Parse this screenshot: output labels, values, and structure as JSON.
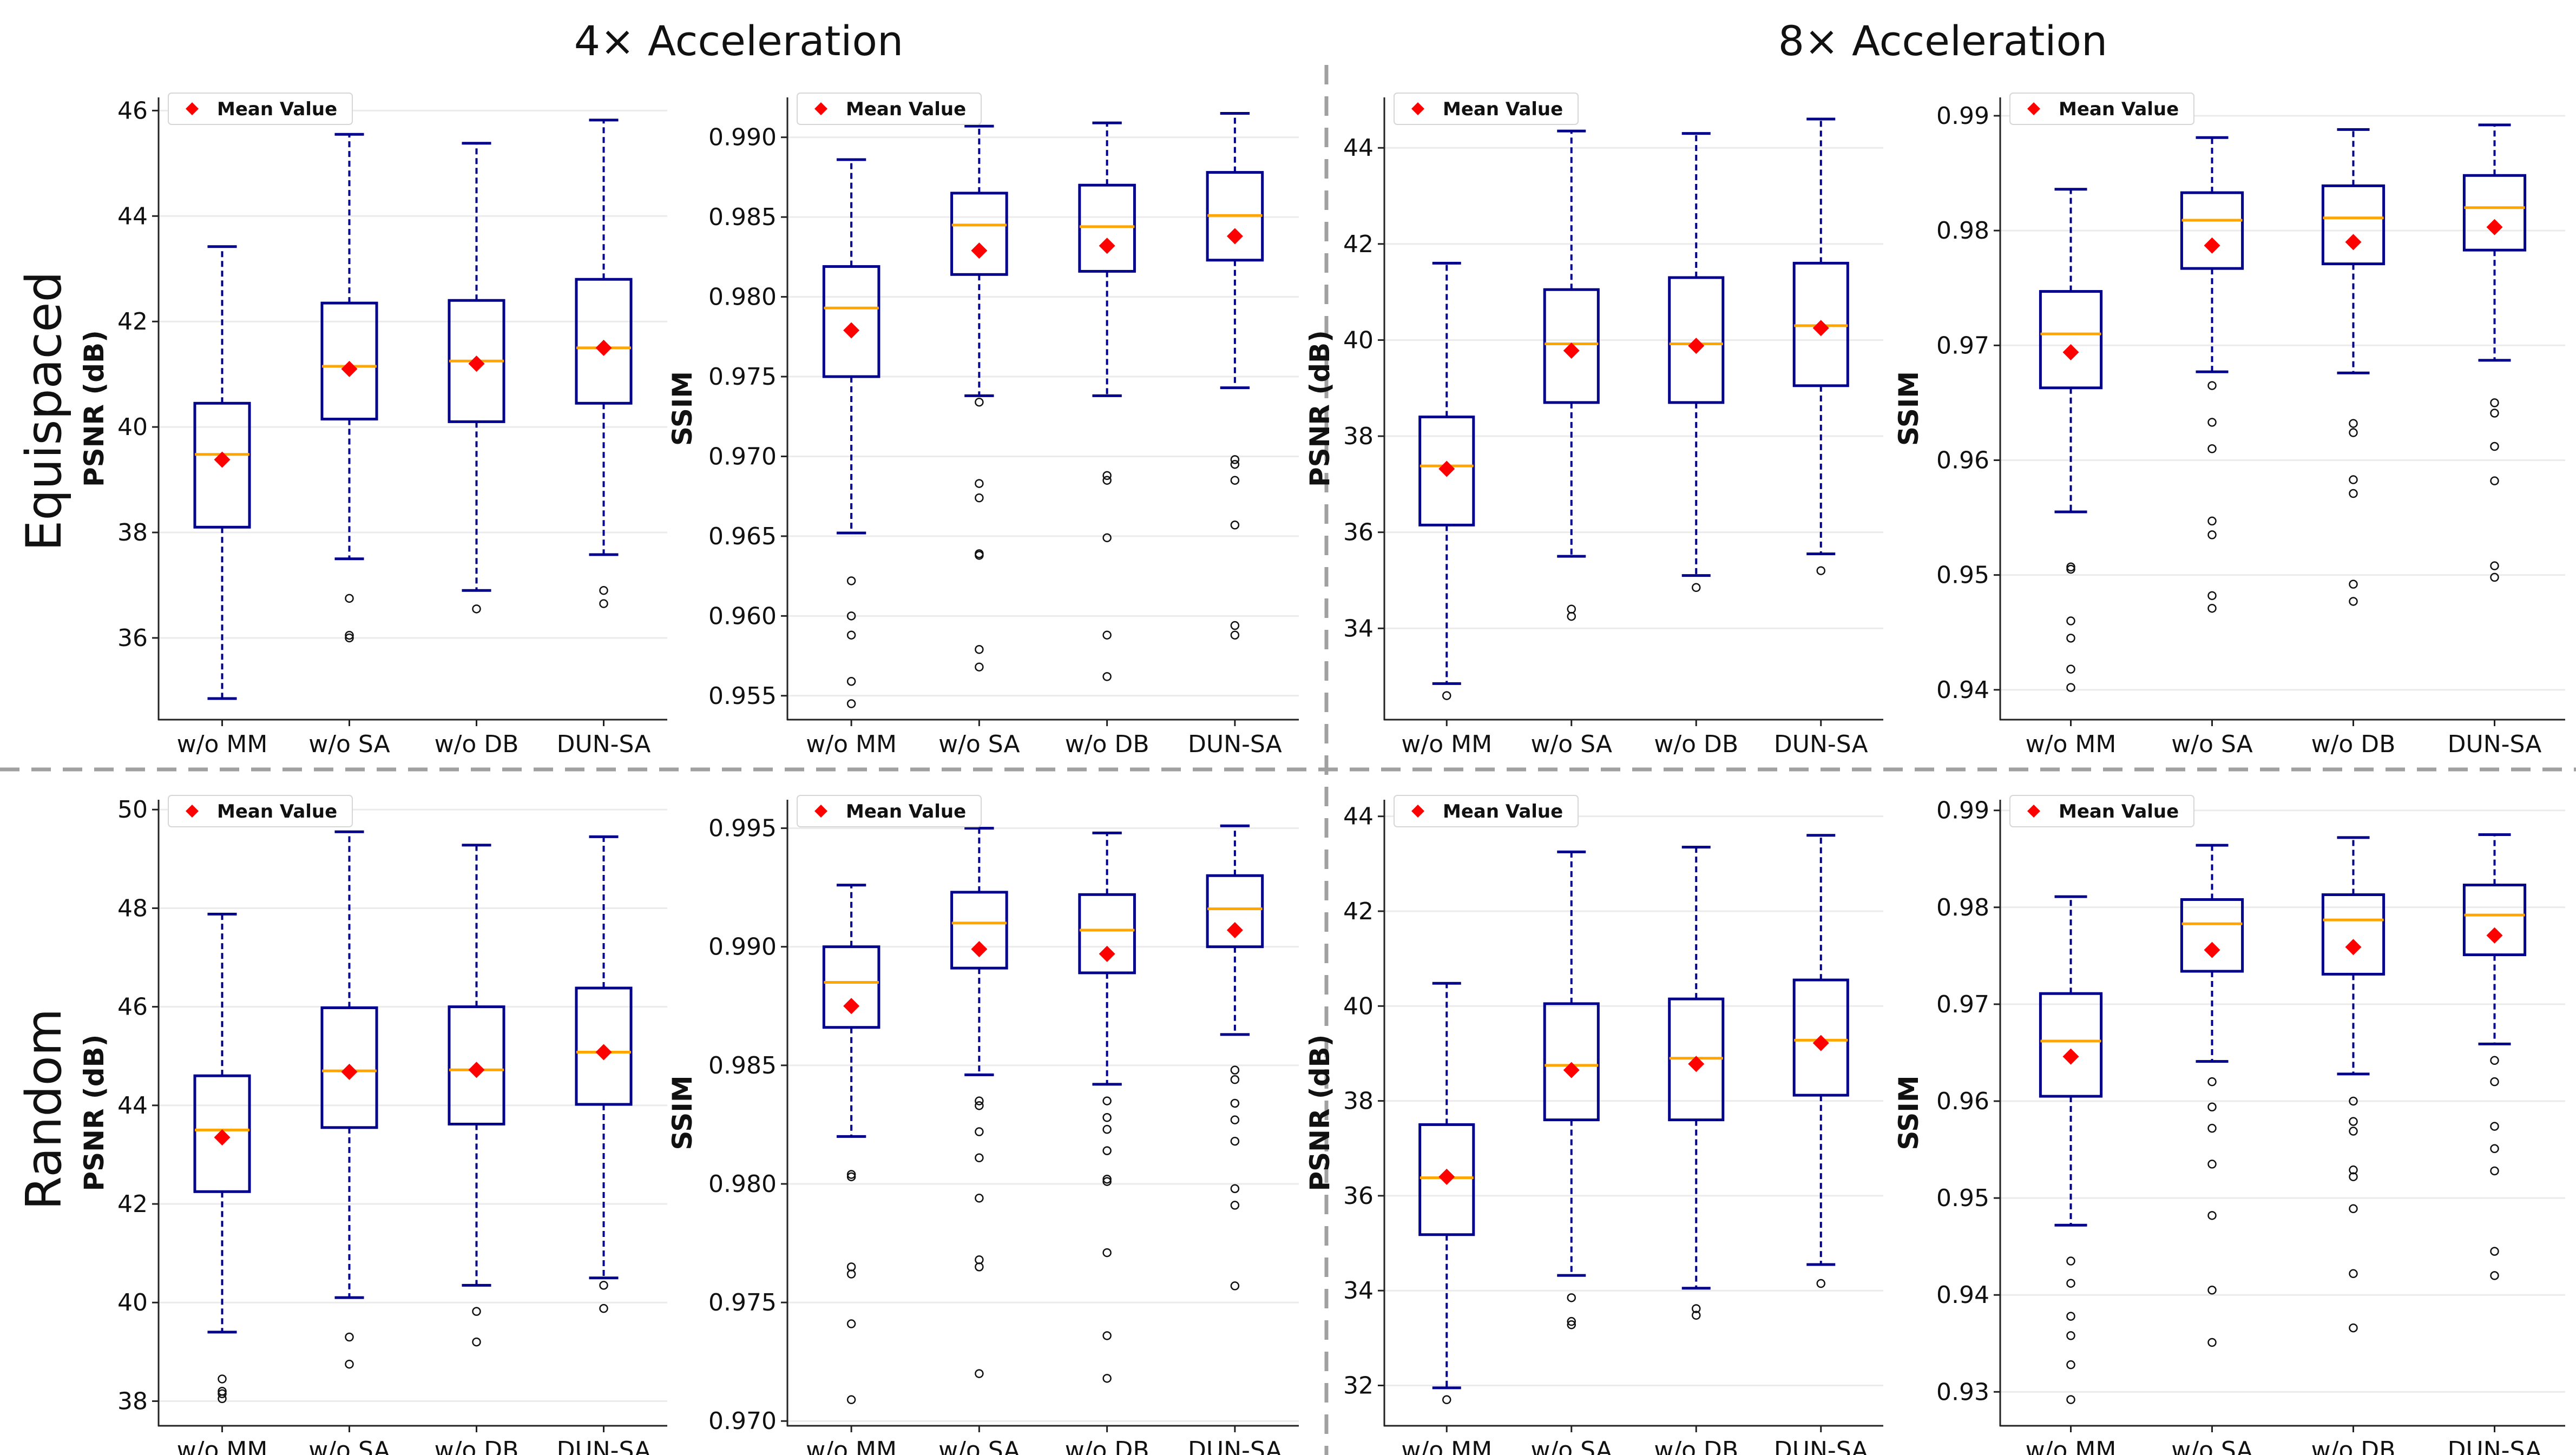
{
  "column_headers": [
    "4× Acceleration",
    "8× Acceleration"
  ],
  "row_headers": [
    "Equispaced",
    "Random"
  ],
  "colors": {
    "box": "#00008B",
    "whisker": "#00008B",
    "median": "#FFA500",
    "mean": "#FF0000",
    "grid": "#EBEBEB",
    "divider": "#A0A0A0"
  },
  "chart_data": [
    {
      "type": "box",
      "title": "",
      "row": "Equispaced",
      "column": "4× Acceleration",
      "xlabel": "",
      "ylabel": "PSNR (dB)",
      "ylim": [
        34.45,
        46.25
      ],
      "yticks": [
        36,
        38,
        40,
        42,
        44,
        46
      ],
      "ytick_labels": [
        "36",
        "38",
        "40",
        "42",
        "44",
        "46"
      ],
      "categories": [
        "w/o MM",
        "w/o SA",
        "w/o DB",
        "DUN-SA"
      ],
      "legend": {
        "label": "Mean Value",
        "position": "top-left"
      },
      "boxes": [
        {
          "whislo": 34.85,
          "q1": 38.1,
          "med": 39.48,
          "q3": 40.45,
          "whishi": 43.42,
          "mean": 39.38,
          "fliers": []
        },
        {
          "whislo": 37.5,
          "q1": 40.15,
          "med": 41.15,
          "q3": 42.35,
          "whishi": 45.55,
          "mean": 41.1,
          "fliers": [
            36.75,
            36.05,
            36.0
          ]
        },
        {
          "whislo": 36.9,
          "q1": 40.1,
          "med": 41.25,
          "q3": 42.4,
          "whishi": 45.38,
          "mean": 41.2,
          "fliers": [
            36.55
          ]
        },
        {
          "whislo": 37.58,
          "q1": 40.45,
          "med": 41.5,
          "q3": 42.8,
          "whishi": 45.82,
          "mean": 41.5,
          "fliers": [
            36.9,
            36.65
          ]
        }
      ]
    },
    {
      "type": "box",
      "title": "",
      "row": "Equispaced",
      "column": "4× Acceleration",
      "xlabel": "",
      "ylabel": "SSIM",
      "ylim": [
        0.9535,
        0.9925
      ],
      "yticks": [
        0.955,
        0.96,
        0.965,
        0.97,
        0.975,
        0.98,
        0.985,
        0.99
      ],
      "ytick_labels": [
        "0.955",
        "0.960",
        "0.965",
        "0.970",
        "0.975",
        "0.980",
        "0.985",
        "0.990"
      ],
      "categories": [
        "w/o MM",
        "w/o SA",
        "w/o DB",
        "DUN-SA"
      ],
      "legend": {
        "label": "Mean Value",
        "position": "top-left"
      },
      "boxes": [
        {
          "whislo": 0.9652,
          "q1": 0.975,
          "med": 0.9793,
          "q3": 0.9819,
          "whishi": 0.9886,
          "mean": 0.9779,
          "fliers": [
            0.9622,
            0.96,
            0.9588,
            0.9559,
            0.9545
          ]
        },
        {
          "whislo": 0.9738,
          "q1": 0.9814,
          "med": 0.9845,
          "q3": 0.9865,
          "whishi": 0.9907,
          "mean": 0.9829,
          "fliers": [
            0.9734,
            0.9683,
            0.9674,
            0.9639,
            0.9638,
            0.9579,
            0.9568
          ]
        },
        {
          "whislo": 0.9738,
          "q1": 0.9816,
          "med": 0.9844,
          "q3": 0.987,
          "whishi": 0.9909,
          "mean": 0.9832,
          "fliers": [
            0.9688,
            0.9685,
            0.9649,
            0.9588,
            0.9562
          ]
        },
        {
          "whislo": 0.9743,
          "q1": 0.9823,
          "med": 0.9851,
          "q3": 0.9878,
          "whishi": 0.9915,
          "mean": 0.9838,
          "fliers": [
            0.9698,
            0.9695,
            0.9685,
            0.9657,
            0.9594,
            0.9588
          ]
        }
      ]
    },
    {
      "type": "box",
      "title": "",
      "row": "Equispaced",
      "column": "8× Acceleration",
      "xlabel": "",
      "ylabel": "PSNR (dB)",
      "ylim": [
        32.1,
        45.05
      ],
      "yticks": [
        34,
        36,
        38,
        40,
        42,
        44
      ],
      "ytick_labels": [
        "34",
        "36",
        "38",
        "40",
        "42",
        "44"
      ],
      "categories": [
        "w/o MM",
        "w/o SA",
        "w/o DB",
        "DUN-SA"
      ],
      "legend": {
        "label": "Mean Value",
        "position": "top-left"
      },
      "boxes": [
        {
          "whislo": 32.85,
          "q1": 36.15,
          "med": 37.38,
          "q3": 38.4,
          "whishi": 41.6,
          "mean": 37.32,
          "fliers": [
            32.6
          ]
        },
        {
          "whislo": 35.5,
          "q1": 38.7,
          "med": 39.92,
          "q3": 41.05,
          "whishi": 44.35,
          "mean": 39.78,
          "fliers": [
            34.4,
            34.25
          ]
        },
        {
          "whislo": 35.1,
          "q1": 38.7,
          "med": 39.92,
          "q3": 41.3,
          "whishi": 44.3,
          "mean": 39.88,
          "fliers": [
            34.85
          ]
        },
        {
          "whislo": 35.55,
          "q1": 39.05,
          "med": 40.3,
          "q3": 41.6,
          "whishi": 44.6,
          "mean": 40.25,
          "fliers": [
            35.2
          ]
        }
      ]
    },
    {
      "type": "box",
      "title": "",
      "row": "Equispaced",
      "column": "8× Acceleration",
      "xlabel": "",
      "ylabel": "SSIM",
      "ylim": [
        0.9374,
        0.9916
      ],
      "yticks": [
        0.94,
        0.95,
        0.96,
        0.97,
        0.98,
        0.99
      ],
      "ytick_labels": [
        "0.94",
        "0.95",
        "0.96",
        "0.97",
        "0.98",
        "0.99"
      ],
      "categories": [
        "w/o MM",
        "w/o SA",
        "w/o DB",
        "DUN-SA"
      ],
      "legend": {
        "label": "Mean Value",
        "position": "top-left"
      },
      "boxes": [
        {
          "whislo": 0.9555,
          "q1": 0.9663,
          "med": 0.971,
          "q3": 0.9747,
          "whishi": 0.9836,
          "mean": 0.9694,
          "fliers": [
            0.9507,
            0.9505,
            0.946,
            0.9445,
            0.9418,
            0.9402
          ]
        },
        {
          "whislo": 0.9677,
          "q1": 0.9767,
          "med": 0.9809,
          "q3": 0.9833,
          "whishi": 0.9881,
          "mean": 0.9787,
          "fliers": [
            0.9665,
            0.9633,
            0.961,
            0.9547,
            0.9535,
            0.9482,
            0.9471
          ]
        },
        {
          "whislo": 0.9676,
          "q1": 0.9771,
          "med": 0.9811,
          "q3": 0.9839,
          "whishi": 0.9888,
          "mean": 0.979,
          "fliers": [
            0.9632,
            0.9624,
            0.9583,
            0.9571,
            0.9492,
            0.9477
          ]
        },
        {
          "whislo": 0.9687,
          "q1": 0.9783,
          "med": 0.982,
          "q3": 0.9848,
          "whishi": 0.9892,
          "mean": 0.9803,
          "fliers": [
            0.965,
            0.9641,
            0.9612,
            0.9582,
            0.9508,
            0.9498
          ]
        }
      ]
    },
    {
      "type": "box",
      "title": "",
      "row": "Random",
      "column": "4× Acceleration",
      "xlabel": "",
      "ylabel": "PSNR (dB)",
      "ylim": [
        37.5,
        50.2
      ],
      "yticks": [
        38,
        40,
        42,
        44,
        46,
        48,
        50
      ],
      "ytick_labels": [
        "38",
        "40",
        "42",
        "44",
        "46",
        "48",
        "50"
      ],
      "categories": [
        "w/o MM",
        "w/o SA",
        "w/o DB",
        "DUN-SA"
      ],
      "legend": {
        "label": "Mean Value",
        "position": "top-left"
      },
      "boxes": [
        {
          "whislo": 39.4,
          "q1": 42.25,
          "med": 43.5,
          "q3": 44.6,
          "whishi": 47.88,
          "mean": 43.35,
          "fliers": [
            38.45,
            38.2,
            38.15,
            38.05
          ]
        },
        {
          "whislo": 40.1,
          "q1": 43.55,
          "med": 44.7,
          "q3": 45.98,
          "whishi": 49.55,
          "mean": 44.68,
          "fliers": [
            39.3,
            38.75
          ]
        },
        {
          "whislo": 40.35,
          "q1": 43.62,
          "med": 44.72,
          "q3": 46.0,
          "whishi": 49.28,
          "mean": 44.72,
          "fliers": [
            39.82,
            39.2
          ]
        },
        {
          "whislo": 40.5,
          "q1": 44.02,
          "med": 45.08,
          "q3": 46.38,
          "whishi": 49.45,
          "mean": 45.08,
          "fliers": [
            40.35,
            39.88
          ]
        }
      ]
    },
    {
      "type": "box",
      "title": "",
      "row": "Random",
      "column": "4× Acceleration",
      "xlabel": "",
      "ylabel": "SSIM",
      "ylim": [
        0.9698,
        0.9962
      ],
      "yticks": [
        0.97,
        0.975,
        0.98,
        0.985,
        0.99,
        0.995
      ],
      "ytick_labels": [
        "0.970",
        "0.975",
        "0.980",
        "0.985",
        "0.990",
        "0.995"
      ],
      "categories": [
        "w/o MM",
        "w/o SA",
        "w/o DB",
        "DUN-SA"
      ],
      "legend": {
        "label": "Mean Value",
        "position": "top-left"
      },
      "boxes": [
        {
          "whislo": 0.982,
          "q1": 0.9866,
          "med": 0.9885,
          "q3": 0.99,
          "whishi": 0.9926,
          "mean": 0.9875,
          "fliers": [
            0.9804,
            0.9803,
            0.9765,
            0.9762,
            0.9741,
            0.9709
          ]
        },
        {
          "whislo": 0.9846,
          "q1": 0.9891,
          "med": 0.991,
          "q3": 0.9923,
          "whishi": 0.995,
          "mean": 0.9899,
          "fliers": [
            0.9835,
            0.9833,
            0.9822,
            0.9811,
            0.9794,
            0.9768,
            0.9765,
            0.972
          ]
        },
        {
          "whislo": 0.9842,
          "q1": 0.9889,
          "med": 0.9907,
          "q3": 0.9922,
          "whishi": 0.9948,
          "mean": 0.9897,
          "fliers": [
            0.9835,
            0.9828,
            0.9823,
            0.9814,
            0.9802,
            0.9801,
            0.9771,
            0.9736,
            0.9718
          ]
        },
        {
          "whislo": 0.9863,
          "q1": 0.99,
          "med": 0.9916,
          "q3": 0.993,
          "whishi": 0.9951,
          "mean": 0.9907,
          "fliers": [
            0.9848,
            0.9844,
            0.9834,
            0.9827,
            0.9818,
            0.9798,
            0.9791,
            0.9757
          ]
        }
      ]
    },
    {
      "type": "box",
      "title": "",
      "row": "Random",
      "column": "8× Acceleration",
      "xlabel": "",
      "ylabel": "PSNR (dB)",
      "ylim": [
        31.15,
        44.35
      ],
      "yticks": [
        32,
        34,
        36,
        38,
        40,
        42,
        44
      ],
      "ytick_labels": [
        "32",
        "34",
        "36",
        "38",
        "40",
        "42",
        "44"
      ],
      "categories": [
        "w/o MM",
        "w/o SA",
        "w/o DB",
        "DUN-SA"
      ],
      "legend": {
        "label": "Mean Value",
        "position": "top-left"
      },
      "boxes": [
        {
          "whislo": 31.95,
          "q1": 35.18,
          "med": 36.38,
          "q3": 37.5,
          "whishi": 40.48,
          "mean": 36.4,
          "fliers": [
            31.7
          ]
        },
        {
          "whislo": 34.32,
          "q1": 37.6,
          "med": 38.75,
          "q3": 40.05,
          "whishi": 43.25,
          "mean": 38.65,
          "fliers": [
            33.85,
            33.35,
            33.28
          ]
        },
        {
          "whislo": 34.05,
          "q1": 37.6,
          "med": 38.9,
          "q3": 40.15,
          "whishi": 43.35,
          "mean": 38.78,
          "fliers": [
            33.62,
            33.48
          ]
        },
        {
          "whislo": 34.55,
          "q1": 38.12,
          "med": 39.28,
          "q3": 40.55,
          "whishi": 43.6,
          "mean": 39.22,
          "fliers": [
            34.15
          ]
        }
      ]
    },
    {
      "type": "box",
      "title": "",
      "row": "Random",
      "column": "8× Acceleration",
      "xlabel": "",
      "ylabel": "SSIM",
      "ylim": [
        0.9265,
        0.9911
      ],
      "yticks": [
        0.93,
        0.94,
        0.95,
        0.96,
        0.97,
        0.98,
        0.99
      ],
      "ytick_labels": [
        "0.93",
        "0.94",
        "0.95",
        "0.96",
        "0.97",
        "0.98",
        "0.99"
      ],
      "categories": [
        "w/o MM",
        "w/o SA",
        "w/o DB",
        "DUN-SA"
      ],
      "legend": {
        "label": "Mean Value",
        "position": "top-left"
      },
      "boxes": [
        {
          "whislo": 0.9472,
          "q1": 0.9605,
          "med": 0.9662,
          "q3": 0.9711,
          "whishi": 0.9811,
          "mean": 0.9646,
          "fliers": [
            0.9435,
            0.9412,
            0.9378,
            0.9358,
            0.9328,
            0.9292
          ]
        },
        {
          "whislo": 0.9641,
          "q1": 0.9734,
          "med": 0.9783,
          "q3": 0.9808,
          "whishi": 0.9864,
          "mean": 0.9756,
          "fliers": [
            0.962,
            0.9594,
            0.9572,
            0.9535,
            0.9482,
            0.9405,
            0.9351
          ]
        },
        {
          "whislo": 0.9628,
          "q1": 0.9731,
          "med": 0.9787,
          "q3": 0.9813,
          "whishi": 0.9872,
          "mean": 0.9759,
          "fliers": [
            0.96,
            0.9579,
            0.9569,
            0.9529,
            0.9522,
            0.9489,
            0.9422,
            0.9366
          ]
        },
        {
          "whislo": 0.9659,
          "q1": 0.9751,
          "med": 0.9792,
          "q3": 0.9823,
          "whishi": 0.9875,
          "mean": 0.9771,
          "fliers": [
            0.9642,
            0.962,
            0.9574,
            0.9551,
            0.9528,
            0.9445,
            0.942
          ]
        }
      ]
    }
  ]
}
